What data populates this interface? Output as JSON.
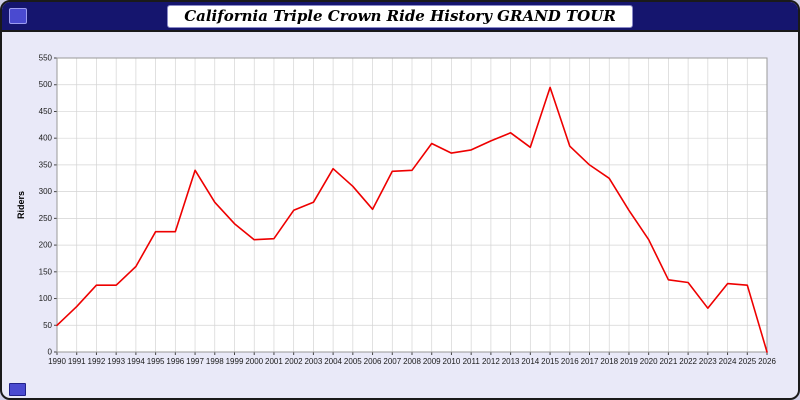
{
  "window": {
    "title": "California Triple Crown Ride History GRAND TOUR"
  },
  "icons": {
    "header_left": "app-window-icon",
    "bottom_left": "corner-decoration-icon"
  },
  "chart_data": {
    "type": "line",
    "title": "California Triple Crown Ride History GRAND TOUR",
    "xlabel": "",
    "ylabel": "Riders",
    "ylim": [
      0,
      550
    ],
    "ytick_step": 50,
    "grid": true,
    "legend": "none",
    "line_color": "#ee0000",
    "plot_bg": "#ffffff",
    "grid_color": "#d4d4d4",
    "x": [
      1990,
      1991,
      1992,
      1993,
      1994,
      1995,
      1996,
      1997,
      1998,
      1999,
      2000,
      2001,
      2002,
      2003,
      2004,
      2005,
      2006,
      2007,
      2008,
      2009,
      2010,
      2011,
      2012,
      2013,
      2014,
      2015,
      2016,
      2017,
      2018,
      2019,
      2020,
      2021,
      2022,
      2023,
      2024,
      2025,
      2026
    ],
    "values": [
      50,
      85,
      125,
      125,
      160,
      225,
      225,
      340,
      280,
      240,
      210,
      212,
      265,
      280,
      343,
      310,
      267,
      338,
      340,
      390,
      372,
      378,
      395,
      410,
      383,
      495,
      385,
      350,
      325,
      265,
      210,
      135,
      130,
      82,
      128,
      125,
      0
    ]
  }
}
